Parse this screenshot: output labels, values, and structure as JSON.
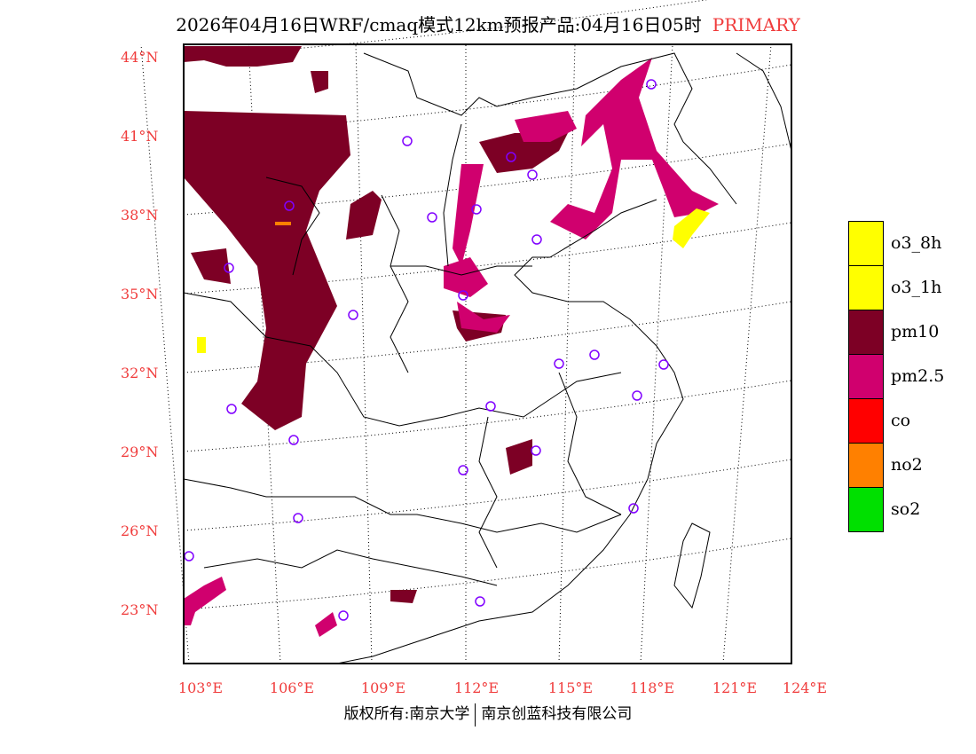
{
  "title": {
    "main": "2026年04月16日WRF/cmaq模式12km预报产品:04月16日05时",
    "tag": "PRIMARY"
  },
  "axes": {
    "lat_labels": [
      "44°N",
      "41°N",
      "38°N",
      "35°N",
      "32°N",
      "29°N",
      "26°N",
      "23°N"
    ],
    "lon_labels": [
      "103°E",
      "106°E",
      "109°E",
      "112°E",
      "115°E",
      "118°E",
      "121°E",
      "124°E"
    ]
  },
  "legend": [
    {
      "label": "o3_8h",
      "color": "#ffff00"
    },
    {
      "label": "o3_1h",
      "color": "#ffff00"
    },
    {
      "label": "pm10",
      "color": "#7d0025"
    },
    {
      "label": "pm2.5",
      "color": "#d0006e"
    },
    {
      "label": "co",
      "color": "#ff0000"
    },
    {
      "label": "no2",
      "color": "#ff8000"
    },
    {
      "label": "so2",
      "color": "#00e000"
    }
  ],
  "footer": {
    "left": "版权所有:南京大学",
    "right": "南京创蓝科技有限公司"
  }
}
